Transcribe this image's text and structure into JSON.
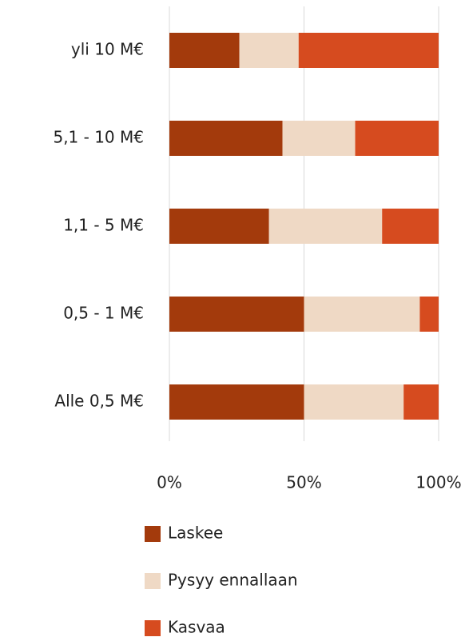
{
  "chart_data": {
    "type": "stacked-bar-horizontal",
    "categories": [
      "yli 10 M€",
      "5,1 - 10 M€",
      "1,1 - 5 M€",
      "0,5 - 1 M€",
      "Alle 0,5 M€"
    ],
    "series": [
      {
        "name": "Laskee",
        "color": "#a33a0c",
        "values": [
          26,
          42,
          37,
          50,
          50
        ]
      },
      {
        "name": "Pysyy ennallaan",
        "color": "#efd9c5",
        "values": [
          22,
          27,
          42,
          43,
          37
        ]
      },
      {
        "name": "Kasvaa",
        "color": "#d64b1f",
        "values": [
          52,
          31,
          21,
          7,
          13
        ]
      }
    ],
    "xlim": [
      0,
      100
    ],
    "xticks": [
      {
        "value": 0,
        "label": "0%"
      },
      {
        "value": 50,
        "label": "50%"
      },
      {
        "value": 100,
        "label": "100%"
      }
    ],
    "grid": true
  }
}
